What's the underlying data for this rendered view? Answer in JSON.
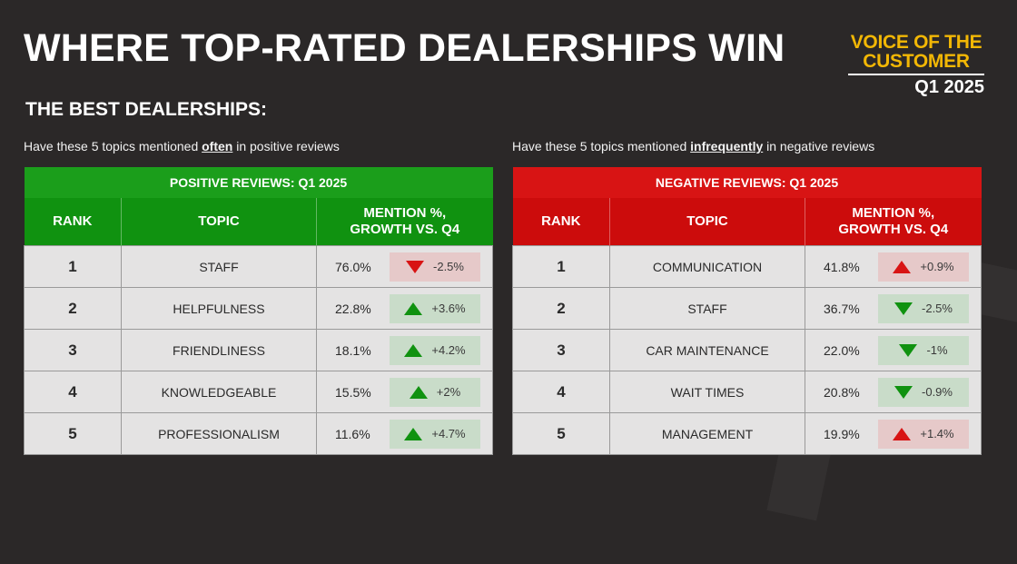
{
  "title": "WHERE TOP-RATED DEALERSHIPS WIN",
  "brand": {
    "line1": "VOICE OF THE",
    "line2": "CUSTOMER",
    "quarter": "Q1 2025",
    "color": "#f2b705"
  },
  "subtitle": "THE BEST DEALERSHIPS:",
  "positive": {
    "intro_pre": "Have these 5 topics mentioned ",
    "intro_em": "often",
    "intro_post": " in positive reviews",
    "band": "POSITIVE REVIEWS: Q1 2025",
    "headers": {
      "rank": "RANK",
      "topic": "TOPIC",
      "mention_1": "MENTION %,",
      "mention_2": "GROWTH VS. Q4"
    },
    "rows": [
      {
        "rank": "1",
        "topic": "STAFF",
        "pct": "76.0%",
        "change": "-2.5%",
        "dir": "down",
        "tone": "bad"
      },
      {
        "rank": "2",
        "topic": "HELPFULNESS",
        "pct": "22.8%",
        "change": "+3.6%",
        "dir": "up",
        "tone": "good"
      },
      {
        "rank": "3",
        "topic": "FRIENDLINESS",
        "pct": "18.1%",
        "change": "+4.2%",
        "dir": "up",
        "tone": "good"
      },
      {
        "rank": "4",
        "topic": "KNOWLEDGEABLE",
        "pct": "15.5%",
        "change": "+2%",
        "dir": "up",
        "tone": "good"
      },
      {
        "rank": "5",
        "topic": "PROFESSIONALISM",
        "pct": "11.6%",
        "change": "+4.7%",
        "dir": "up",
        "tone": "good"
      }
    ]
  },
  "negative": {
    "intro_pre": "Have these 5 topics mentioned ",
    "intro_em": "infrequently",
    "intro_post": " in negative reviews",
    "band": "NEGATIVE REVIEWS: Q1 2025",
    "headers": {
      "rank": "RANK",
      "topic": "TOPIC",
      "mention_1": "MENTION %,",
      "mention_2": "GROWTH VS. Q4"
    },
    "rows": [
      {
        "rank": "1",
        "topic": "COMMUNICATION",
        "pct": "41.8%",
        "change": "+0.9%",
        "dir": "up",
        "tone": "bad"
      },
      {
        "rank": "2",
        "topic": "STAFF",
        "pct": "36.7%",
        "change": "-2.5%",
        "dir": "down",
        "tone": "good"
      },
      {
        "rank": "3",
        "topic": "CAR MAINTENANCE",
        "pct": "22.0%",
        "change": "-1%",
        "dir": "down",
        "tone": "good"
      },
      {
        "rank": "4",
        "topic": "WAIT TIMES",
        "pct": "20.8%",
        "change": "-0.9%",
        "dir": "down",
        "tone": "good"
      },
      {
        "rank": "5",
        "topic": "MANAGEMENT",
        "pct": "19.9%",
        "change": "+1.4%",
        "dir": "up",
        "tone": "bad"
      }
    ]
  },
  "colors": {
    "good_arrow": "#109210",
    "bad_arrow": "#d81414",
    "good_bg": "#c9dcc9",
    "bad_bg": "#e6c9c9"
  }
}
